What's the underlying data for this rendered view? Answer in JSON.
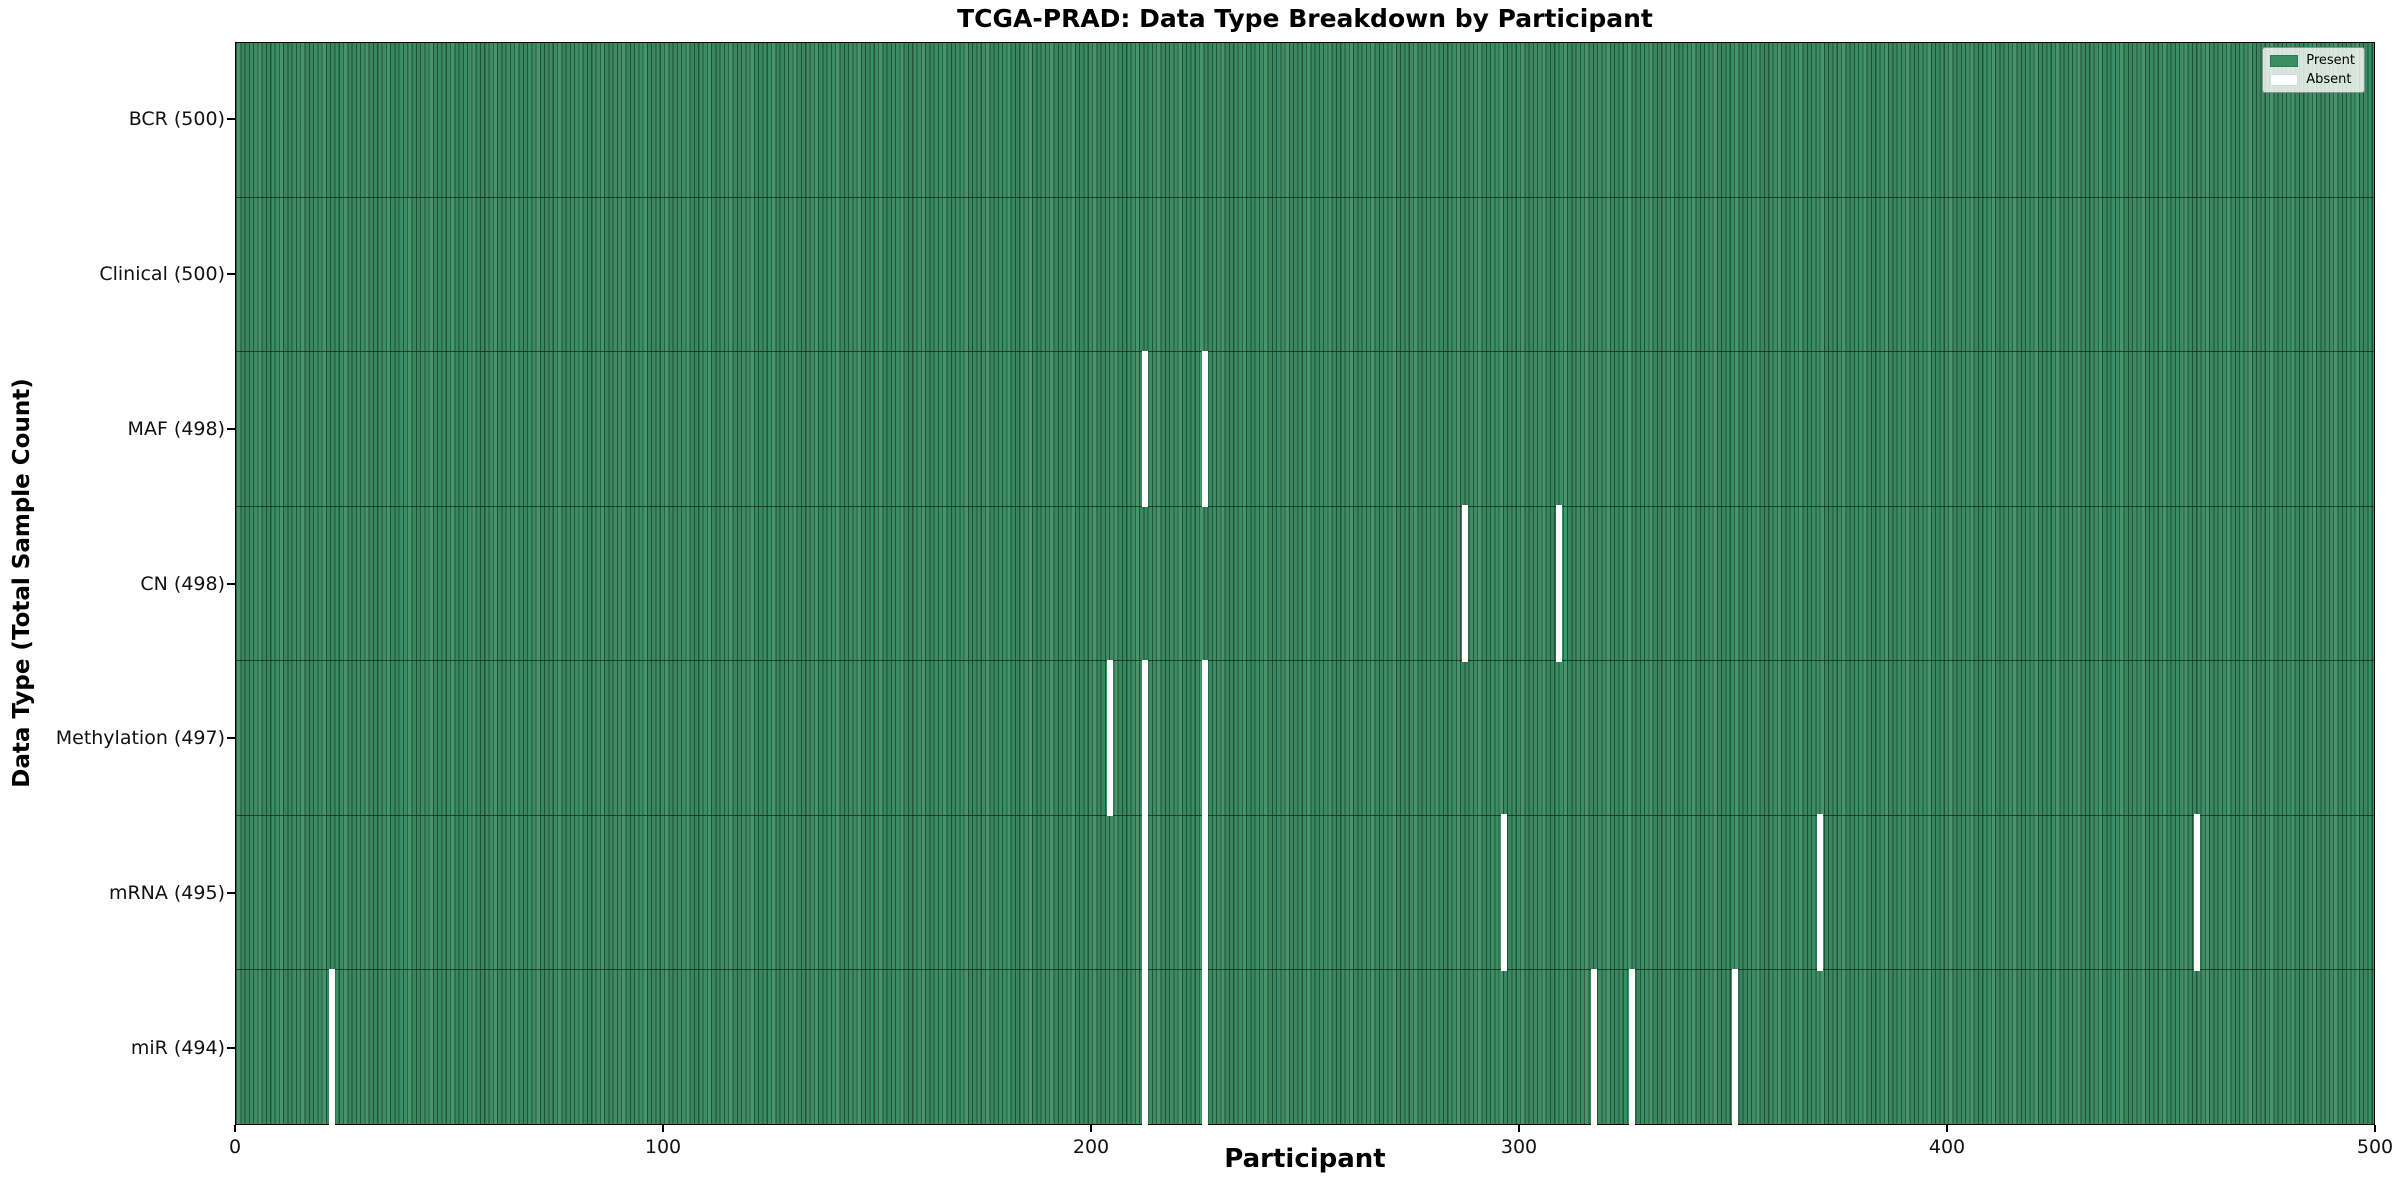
{
  "title": "TCGA-PRAD: Data Type Breakdown by Participant",
  "xlabel": "Participant",
  "ylabel": "Data Type (Total Sample Count)",
  "legend": {
    "present_label": "Present",
    "absent_label": "Absent"
  },
  "colors": {
    "present_fill": "#3b8e62",
    "present_edge": "#24523a",
    "absent_fill": "#ffffff",
    "axis_text": "#111111"
  },
  "chart_data": {
    "type": "heatmap",
    "title": "TCGA-PRAD: Data Type Breakdown by Participant",
    "xlabel": "Participant",
    "ylabel": "Data Type (Total Sample Count)",
    "x_range": [
      0,
      500
    ],
    "x_ticks": [
      0,
      100,
      200,
      300,
      400,
      500
    ],
    "legend_entries": [
      "Present",
      "Absent"
    ],
    "legend_position": "upper right",
    "grid": false,
    "rows": [
      {
        "data_type": "BCR",
        "label": "BCR (500)",
        "total": 500,
        "absent_participants": []
      },
      {
        "data_type": "Clinical",
        "label": "Clinical (500)",
        "total": 500,
        "absent_participants": []
      },
      {
        "data_type": "MAF",
        "label": "MAF (498)",
        "total": 498,
        "absent_participants": [
          212,
          226
        ]
      },
      {
        "data_type": "CN",
        "label": "CN (498)",
        "total": 498,
        "absent_participants": [
          287,
          309
        ]
      },
      {
        "data_type": "Methylation",
        "label": "Methylation (497)",
        "total": 497,
        "absent_participants": [
          204,
          212,
          226
        ]
      },
      {
        "data_type": "mRNA",
        "label": "mRNA (495)",
        "total": 495,
        "absent_participants": [
          212,
          226,
          296,
          370,
          458
        ]
      },
      {
        "data_type": "miR",
        "label": "miR (494)",
        "total": 494,
        "absent_participants": [
          22,
          212,
          226,
          317,
          326,
          350
        ]
      }
    ]
  }
}
